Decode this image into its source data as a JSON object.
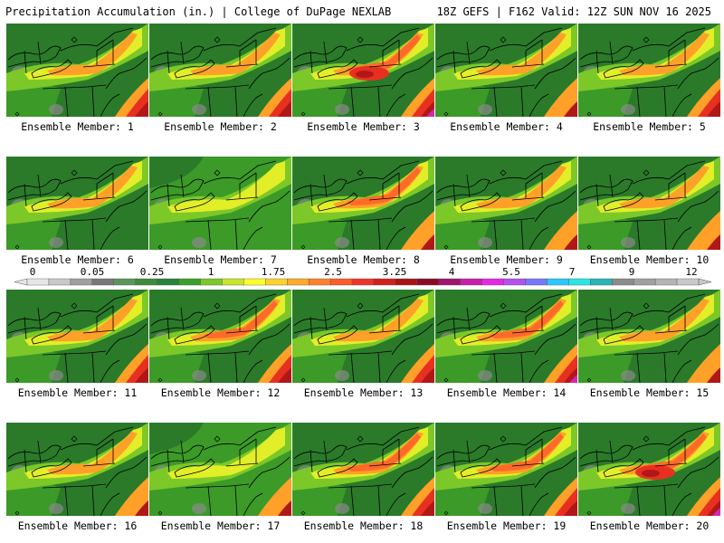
{
  "header": {
    "left_title": "Precipitation Accumulation (in.) | College of DuPage NEXLAB",
    "right_title": "18Z GEFS | F162 Valid: 12Z SUN NOV 16 2025"
  },
  "panels": [
    {
      "caption": "Ensemble Member: 1"
    },
    {
      "caption": "Ensemble Member: 2"
    },
    {
      "caption": "Ensemble Member: 3"
    },
    {
      "caption": "Ensemble Member: 4"
    },
    {
      "caption": "Ensemble Member: 5"
    },
    {
      "caption": "Ensemble Member: 6"
    },
    {
      "caption": "Ensemble Member: 7"
    },
    {
      "caption": "Ensemble Member: 8"
    },
    {
      "caption": "Ensemble Member: 9"
    },
    {
      "caption": "Ensemble Member: 10"
    },
    {
      "caption": "Ensemble Member: 11"
    },
    {
      "caption": "Ensemble Member: 12"
    },
    {
      "caption": "Ensemble Member: 13"
    },
    {
      "caption": "Ensemble Member: 14"
    },
    {
      "caption": "Ensemble Member: 15"
    },
    {
      "caption": "Ensemble Member: 16"
    },
    {
      "caption": "Ensemble Member: 17"
    },
    {
      "caption": "Ensemble Member: 18"
    },
    {
      "caption": "Ensemble Member: 19"
    },
    {
      "caption": "Ensemble Member: 20"
    }
  ],
  "legend": {
    "labels": [
      "0",
      "0.05",
      "0.25",
      "1",
      "1.75",
      "2.5",
      "3.25",
      "4",
      "5.5",
      "7",
      "9",
      "12"
    ],
    "colors": [
      "#e6e6e6",
      "#c8c8c8",
      "#a0a0a0",
      "#787878",
      "#5a965a",
      "#3c8c3c",
      "#28823c",
      "#3ca028",
      "#7cc828",
      "#c8e628",
      "#ffff28",
      "#ffd228",
      "#ffaa28",
      "#ff8228",
      "#ff5a28",
      "#f03228",
      "#d21e1e",
      "#aa1414",
      "#8c0a28",
      "#a0146e",
      "#c81eaa",
      "#e628e6",
      "#b450f0",
      "#7878ff",
      "#28c8ff",
      "#28e6e6",
      "#28b4b4",
      "#8c8c8c",
      "#a0a0a0",
      "#b4b4b4",
      "#c8c8c8"
    ]
  }
}
